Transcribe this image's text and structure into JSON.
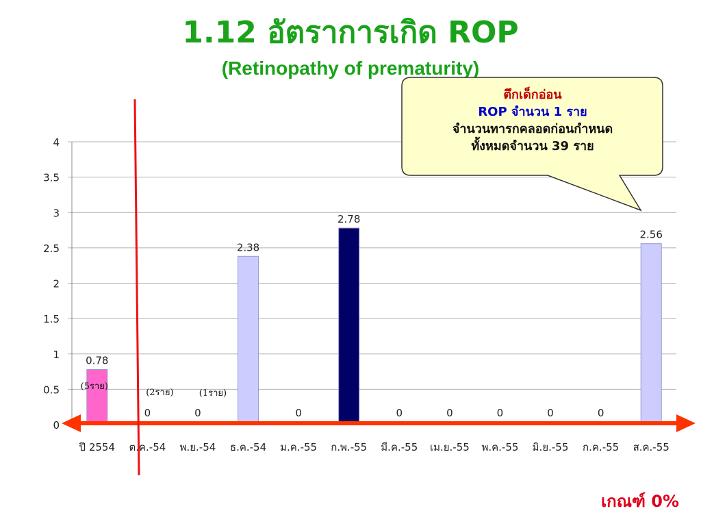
{
  "slide": {
    "title": "1.12 อัตราการเกิด  ROP",
    "subtitle": "(Retinopathy of prematurity)",
    "criterion": "เกณฑ์ 0%"
  },
  "callout": {
    "line1": "ตึกเด็กอ่อน",
    "line2": "ROP จำนวน 1 ราย",
    "line3": "จำนวนทารกคลอดก่อนกำหนด",
    "line4": "ทั้งหมดจำนวน 39 ราย"
  },
  "chart_data": {
    "type": "bar",
    "title": "",
    "xlabel": "",
    "ylabel": "",
    "ylim": [
      0,
      4
    ],
    "yticks": [
      "0",
      "0.5",
      "1",
      "1.5",
      "2",
      "2.5",
      "3",
      "3.5",
      "4"
    ],
    "grid": true,
    "legend": "none",
    "categories": [
      "ปี 2554",
      "ต.ค.-54",
      "พ.ย.-54",
      "ธ.ค.-54",
      "ม.ค.-55",
      "ก.พ.-55",
      "มี.ค.-55",
      "เม.ย.-55",
      "พ.ค.-55",
      "มิ.ย.-55",
      "ก.ค.-55",
      "ส.ค.-55"
    ],
    "values": [
      0.78,
      0,
      0,
      2.38,
      0,
      2.78,
      0,
      0,
      0,
      0,
      0,
      2.56
    ],
    "data_labels": [
      "0.78",
      "0",
      "0",
      "2.38",
      "0",
      "2.78",
      "0",
      "0",
      "0",
      "0",
      "0",
      "2.56"
    ],
    "bar_colors": [
      "#ff66cc",
      "#ccccff",
      "#ccccff",
      "#ccccff",
      "#ccccff",
      "#000066",
      "#ccccff",
      "#ccccff",
      "#ccccff",
      "#ccccff",
      "#ccccff",
      "#ccccff"
    ],
    "case_notes": [
      {
        "category": "ปี 2554",
        "text": "(5ราย)"
      },
      {
        "category": "ต.ค.-54",
        "text": "(2ราย)"
      },
      {
        "category": "พ.ย.-54",
        "text": "(1ราย)"
      }
    ]
  },
  "colors": {
    "title": "#1aa31a",
    "arrow": "#ff3300",
    "divider": "#ee1111",
    "callout_fill": "#ffffcc",
    "criterion": "#e0001a"
  }
}
